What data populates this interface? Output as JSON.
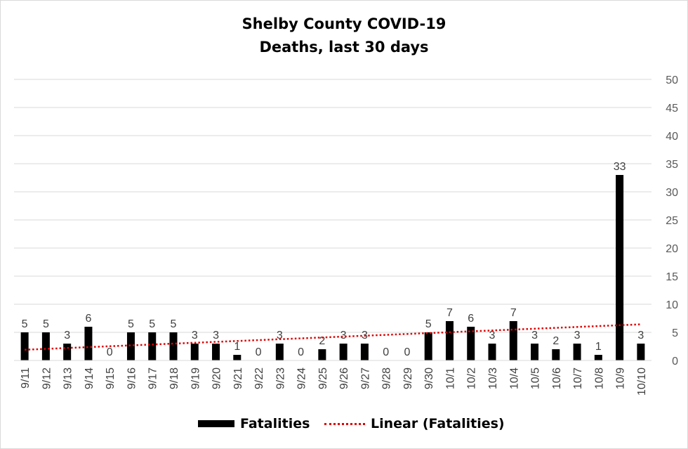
{
  "chart_data": {
    "type": "bar",
    "title_lines": [
      "Shelby County COVID-19",
      "Deaths, last 30 days"
    ],
    "categories": [
      "9/11",
      "9/12",
      "9/13",
      "9/14",
      "9/15",
      "9/16",
      "9/17",
      "9/18",
      "9/19",
      "9/20",
      "9/21",
      "9/22",
      "9/23",
      "9/24",
      "9/25",
      "9/26",
      "9/27",
      "9/28",
      "9/29",
      "9/30",
      "10/1",
      "10/2",
      "10/3",
      "10/4",
      "10/5",
      "10/6",
      "10/7",
      "10/8",
      "10/9",
      "10/10"
    ],
    "series": [
      {
        "name": "Fatalities",
        "type": "bar",
        "color": "#000000",
        "values": [
          5,
          5,
          3,
          6,
          0,
          5,
          5,
          5,
          3,
          3,
          1,
          0,
          3,
          0,
          2,
          3,
          3,
          0,
          0,
          5,
          7,
          6,
          3,
          7,
          3,
          2,
          3,
          1,
          33,
          3
        ]
      },
      {
        "name": "Linear (Fatalities)",
        "type": "trendline",
        "style": "dotted",
        "color": "#e00000"
      }
    ],
    "ylim": [
      0,
      50
    ],
    "yticks": [
      "0",
      "5",
      "10",
      "15",
      "20",
      "25",
      "30",
      "35",
      "40",
      "45",
      "50"
    ],
    "y_axis_side": "right",
    "gridlines": true,
    "data_labels": true,
    "legend_position": "bottom"
  }
}
